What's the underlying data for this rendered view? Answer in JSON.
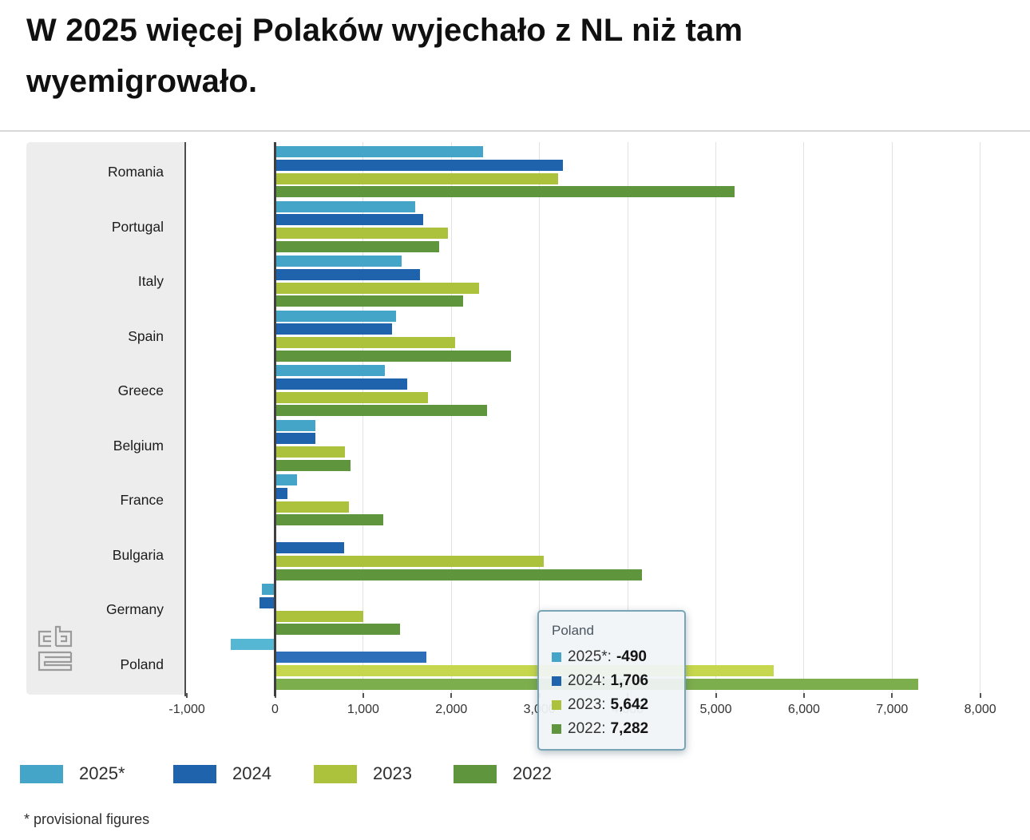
{
  "title": {
    "line1": "W 2025 więcej Polaków wyjechało z NL niż tam",
    "line2": "wyemigrowało."
  },
  "footnote": "* provisional figures",
  "colors": {
    "series_2025": "#45a5c8",
    "series_2024": "#2063ad",
    "series_2023": "#adc23c",
    "series_2022": "#5f963d",
    "panel_background": "#ededed",
    "axis_line": "#3f3f3f",
    "gridline": "#e2e2e2",
    "tooltip_border": "#78a5b6"
  },
  "legend": {
    "items": [
      {
        "label": "2025*",
        "color": "#45a5c8"
      },
      {
        "label": "2024",
        "color": "#2063ad"
      },
      {
        "label": "2023",
        "color": "#adc23c"
      },
      {
        "label": "2022",
        "color": "#5f963d"
      }
    ]
  },
  "tooltip": {
    "country": "Poland",
    "rows": [
      {
        "label": "2025*:",
        "value": "-490",
        "color": "#45a5c8"
      },
      {
        "label": "2024:",
        "value": "1,706",
        "color": "#2063ad"
      },
      {
        "label": "2023:",
        "value": "5,642",
        "color": "#adc23c"
      },
      {
        "label": "2022:",
        "value": "7,282",
        "color": "#5f963d"
      }
    ]
  },
  "chart_data": {
    "type": "bar",
    "orientation": "horizontal",
    "title": "W 2025 więcej Polaków wyjechało z NL niż tam wyemigrowało.",
    "categories": [
      "Romania",
      "Portugal",
      "Italy",
      "Spain",
      "Greece",
      "Belgium",
      "France",
      "Bulgaria",
      "Germany",
      "Poland"
    ],
    "series": [
      {
        "name": "2025*",
        "color": "#45a5c8",
        "highlight_color": "#56b7d5",
        "values": [
          2350,
          1580,
          1420,
          1360,
          1230,
          440,
          240,
          null,
          -140,
          -490
        ]
      },
      {
        "name": "2024",
        "color": "#2063ad",
        "highlight_color": "#2e6fb9",
        "values": [
          3250,
          1670,
          1630,
          1310,
          1490,
          440,
          130,
          770,
          -160,
          1706
        ]
      },
      {
        "name": "2023",
        "color": "#adc23c",
        "highlight_color": "#c6d74d",
        "values": [
          3200,
          1950,
          2300,
          2030,
          1720,
          780,
          820,
          3030,
          990,
          5642
        ]
      },
      {
        "name": "2022",
        "color": "#5f963d",
        "highlight_color": "#7dae4d",
        "values": [
          5200,
          1850,
          2120,
          2660,
          2390,
          840,
          1210,
          4150,
          1400,
          7282
        ]
      }
    ],
    "highlighted_category": "Poland",
    "x_ticks": [
      {
        "v": -1000,
        "label": "-1,000"
      },
      {
        "v": 0,
        "label": "0"
      },
      {
        "v": 1000,
        "label": "1,000"
      },
      {
        "v": 2000,
        "label": "2,000"
      },
      {
        "v": 3000,
        "label": "3,000"
      },
      {
        "v": 4000,
        "label": "4,000"
      },
      {
        "v": 5000,
        "label": "5,000"
      },
      {
        "v": 6000,
        "label": "6,000"
      },
      {
        "v": 7000,
        "label": "7,000"
      },
      {
        "v": 8000,
        "label": "8,000"
      }
    ],
    "xlim": [
      -1000,
      8200
    ],
    "grid": true,
    "legend_position": "bottom"
  }
}
